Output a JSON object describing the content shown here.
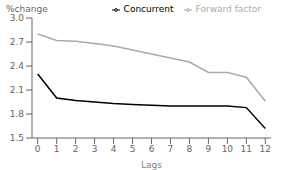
{
  "chart_data": {
    "type": "line",
    "x": [
      0,
      1,
      2,
      3,
      4,
      5,
      6,
      7,
      8,
      9,
      10,
      11,
      12
    ],
    "series": [
      {
        "name": "Concurrent",
        "color": "#000000",
        "values": [
          2.3,
          2.0,
          1.97,
          1.95,
          1.93,
          1.92,
          1.91,
          1.9,
          1.9,
          1.9,
          1.9,
          1.88,
          1.62
        ]
      },
      {
        "name": "Forward factor",
        "color": "#aaaaaa",
        "values": [
          2.8,
          2.72,
          2.71,
          2.68,
          2.65,
          2.6,
          2.55,
          2.5,
          2.45,
          2.32,
          2.32,
          2.26,
          1.96
        ]
      }
    ],
    "xlabel": "Lags",
    "ylabel": "%change",
    "xlim": [
      -0.3,
      12.3
    ],
    "xticks": [
      0,
      1,
      2,
      3,
      4,
      5,
      6,
      7,
      8,
      9,
      10,
      11,
      12
    ],
    "ylim": [
      1.5,
      3.0
    ],
    "yticks": [
      1.5,
      1.8,
      2.1,
      2.4,
      2.7,
      {
        "value": 3.0,
        "label": "3.0"
      }
    ],
    "grid": false,
    "legend": "upper right"
  }
}
